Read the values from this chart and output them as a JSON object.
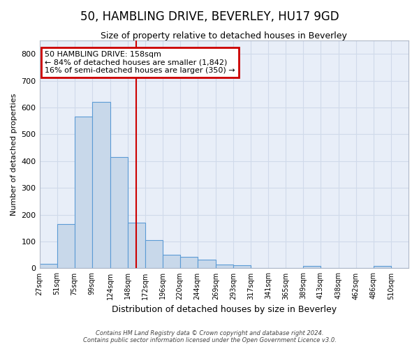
{
  "title": "50, HAMBLING DRIVE, BEVERLEY, HU17 9GD",
  "subtitle": "Size of property relative to detached houses in Beverley",
  "xlabel": "Distribution of detached houses by size in Beverley",
  "ylabel": "Number of detached properties",
  "bar_color": "#c8d8ea",
  "bar_edge_color": "#5b9bd5",
  "bar_heights": [
    18,
    165,
    565,
    620,
    415,
    170,
    105,
    50,
    42,
    33,
    15,
    12,
    0,
    0,
    0,
    10,
    0,
    0,
    0,
    8,
    0
  ],
  "bin_edges": [
    27,
    51,
    75,
    99,
    124,
    148,
    172,
    196,
    220,
    244,
    269,
    293,
    317,
    341,
    365,
    389,
    413,
    438,
    462,
    486,
    510,
    534
  ],
  "x_tick_labels": [
    "27sqm",
    "51sqm",
    "75sqm",
    "99sqm",
    "124sqm",
    "148sqm",
    "172sqm",
    "196sqm",
    "220sqm",
    "244sqm",
    "269sqm",
    "293sqm",
    "317sqm",
    "341sqm",
    "365sqm",
    "389sqm",
    "413sqm",
    "438sqm",
    "462sqm",
    "486sqm",
    "510sqm"
  ],
  "ylim": [
    0,
    850
  ],
  "yticks": [
    0,
    100,
    200,
    300,
    400,
    500,
    600,
    700,
    800
  ],
  "vline_x": 160,
  "annotation_title": "50 HAMBLING DRIVE: 158sqm",
  "annotation_line1": "← 84% of detached houses are smaller (1,842)",
  "annotation_line2": "16% of semi-detached houses are larger (350) →",
  "annotation_box_color": "white",
  "annotation_border_color": "#cc0000",
  "vline_color": "#cc0000",
  "grid_color": "#d0daea",
  "plot_bg_color": "#e8eef8",
  "fig_bg_color": "#ffffff",
  "footer_line1": "Contains HM Land Registry data © Crown copyright and database right 2024.",
  "footer_line2": "Contains public sector information licensed under the Open Government Licence v3.0.",
  "title_fontsize": 12,
  "subtitle_fontsize": 9,
  "ylabel_fontsize": 8,
  "xlabel_fontsize": 9
}
